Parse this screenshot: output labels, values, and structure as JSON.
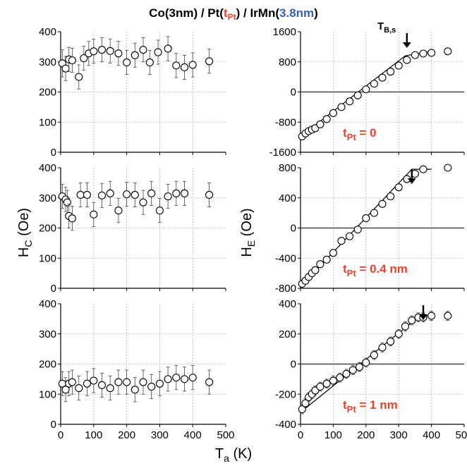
{
  "title": {
    "part1": "Co(3nm) / Pt(",
    "part2": "t",
    "part2_sub": "Pt",
    "part3": ") / IrMn(",
    "part4": "3.8nm",
    "part5": ")"
  },
  "colors": {
    "red": "#e8432e",
    "blue": "#3a62b0"
  },
  "xlabel": {
    "main": "T",
    "sub": "a",
    "rest": " (K)"
  },
  "ylabel_left": {
    "main": "H",
    "sub": "C",
    "rest": " (Oe)"
  },
  "ylabel_right": {
    "main": "H",
    "sub": "E",
    "rest": " (Oe)"
  },
  "tb_label": {
    "main": "T",
    "sub": "B,s"
  },
  "chart_data": [
    {
      "id": "hc-0",
      "type": "scatter",
      "ylim": [
        0,
        400
      ],
      "yticks": [
        0,
        100,
        200,
        300,
        400
      ],
      "xticks": [
        0,
        100,
        200,
        300,
        400,
        500
      ],
      "xlim": [
        0,
        500
      ],
      "x": [
        5,
        15,
        25,
        35,
        55,
        70,
        85,
        100,
        125,
        150,
        175,
        200,
        225,
        250,
        270,
        295,
        325,
        350,
        375,
        400,
        450
      ],
      "y": [
        295,
        278,
        308,
        305,
        250,
        312,
        328,
        335,
        340,
        336,
        328,
        298,
        322,
        340,
        298,
        332,
        344,
        288,
        282,
        290,
        302
      ],
      "err": [
        45,
        40,
        40,
        40,
        40,
        40,
        40,
        40,
        40,
        40,
        40,
        40,
        40,
        40,
        40,
        40,
        40,
        40,
        40,
        40,
        40
      ]
    },
    {
      "id": "hc-1",
      "type": "scatter",
      "ylim": [
        0,
        400
      ],
      "yticks": [
        0,
        100,
        200,
        300,
        400
      ],
      "xticks": [
        0,
        100,
        200,
        300,
        400,
        500
      ],
      "xlim": [
        0,
        500
      ],
      "x": [
        5,
        15,
        20,
        25,
        35,
        60,
        80,
        100,
        125,
        150,
        175,
        200,
        225,
        250,
        275,
        300,
        325,
        350,
        375,
        450
      ],
      "y": [
        305,
        295,
        285,
        240,
        232,
        310,
        310,
        245,
        308,
        315,
        258,
        312,
        310,
        285,
        315,
        258,
        305,
        315,
        315,
        310
      ],
      "err": [
        40,
        40,
        40,
        40,
        40,
        40,
        40,
        40,
        40,
        40,
        40,
        40,
        40,
        40,
        40,
        40,
        40,
        40,
        40,
        40
      ]
    },
    {
      "id": "hc-2",
      "type": "scatter",
      "ylim": [
        0,
        400
      ],
      "yticks": [
        0,
        100,
        200,
        300,
        400
      ],
      "xticks": [
        0,
        100,
        200,
        300,
        400,
        500
      ],
      "xlim": [
        0,
        500
      ],
      "x": [
        5,
        15,
        25,
        35,
        55,
        80,
        100,
        125,
        150,
        175,
        200,
        225,
        250,
        275,
        300,
        325,
        350,
        375,
        400,
        450
      ],
      "y": [
        135,
        115,
        135,
        140,
        120,
        135,
        145,
        130,
        120,
        140,
        140,
        115,
        140,
        125,
        135,
        150,
        155,
        150,
        155,
        140
      ],
      "err": [
        40,
        40,
        40,
        40,
        40,
        40,
        40,
        40,
        40,
        40,
        40,
        40,
        40,
        40,
        40,
        40,
        40,
        40,
        40,
        40
      ]
    },
    {
      "id": "he-0",
      "type": "scatter",
      "ylim": [
        -1600,
        1600
      ],
      "yticks": [
        -1600,
        -800,
        0,
        800,
        1600
      ],
      "xticks": [
        0,
        100,
        200,
        300,
        400,
        500
      ],
      "xlim": [
        0,
        500
      ],
      "x": [
        5,
        15,
        25,
        35,
        45,
        60,
        80,
        100,
        125,
        150,
        175,
        200,
        225,
        250,
        275,
        300,
        325,
        350,
        375,
        400,
        450
      ],
      "y": [
        -1180,
        -1100,
        -1040,
        -1000,
        -960,
        -860,
        -720,
        -560,
        -400,
        -250,
        -90,
        70,
        220,
        380,
        540,
        700,
        850,
        980,
        1020,
        1040,
        1080
      ],
      "err": [
        60,
        60,
        60,
        60,
        60,
        60,
        60,
        60,
        60,
        60,
        60,
        60,
        60,
        60,
        60,
        60,
        60,
        60,
        60,
        60,
        60
      ],
      "fit": [
        [
          0,
          -1180
        ],
        [
          320,
          960
        ],
        [
          400,
          1080
        ]
      ],
      "arrow_x": 325,
      "annotation": {
        "main": "t",
        "sub": "Pt",
        "rest": " = 0"
      }
    },
    {
      "id": "he-1",
      "type": "scatter",
      "ylim": [
        -800,
        800
      ],
      "yticks": [
        -800,
        -400,
        0,
        400,
        800
      ],
      "xticks": [
        0,
        100,
        200,
        300,
        400,
        500
      ],
      "xlim": [
        0,
        500
      ],
      "x": [
        5,
        15,
        25,
        35,
        45,
        60,
        80,
        100,
        125,
        150,
        175,
        200,
        225,
        250,
        275,
        300,
        325,
        350,
        375,
        450
      ],
      "y": [
        -740,
        -700,
        -650,
        -600,
        -560,
        -480,
        -420,
        -330,
        -170,
        -110,
        -20,
        130,
        200,
        320,
        420,
        540,
        650,
        720,
        780,
        800
      ],
      "err": [
        40,
        40,
        40,
        40,
        40,
        40,
        40,
        40,
        40,
        40,
        40,
        40,
        40,
        40,
        40,
        40,
        40,
        40,
        40,
        40
      ],
      "fit": [
        [
          0,
          -780
        ],
        [
          340,
          780
        ],
        [
          400,
          780
        ]
      ],
      "arrow_x": 340,
      "annotation": {
        "main": "t",
        "sub": "Pt",
        "rest": " = 0.4 nm"
      }
    },
    {
      "id": "he-2",
      "type": "scatter",
      "ylim": [
        -400,
        400
      ],
      "yticks": [
        -400,
        -200,
        0,
        200,
        400
      ],
      "xticks": [
        0,
        100,
        200,
        300,
        400,
        500
      ],
      "xlim": [
        0,
        500
      ],
      "x": [
        5,
        15,
        25,
        35,
        45,
        60,
        80,
        100,
        120,
        140,
        160,
        180,
        200,
        225,
        250,
        275,
        300,
        320,
        340,
        360,
        375,
        400,
        450
      ],
      "y": [
        -300,
        -260,
        -220,
        -200,
        -175,
        -150,
        -130,
        -110,
        -90,
        -65,
        -40,
        -20,
        10,
        60,
        110,
        150,
        200,
        250,
        290,
        310,
        310,
        320,
        320
      ],
      "err": [
        30,
        30,
        30,
        30,
        30,
        30,
        30,
        30,
        30,
        30,
        30,
        30,
        30,
        30,
        30,
        30,
        30,
        30,
        30,
        30,
        30,
        30,
        30
      ],
      "fit": [
        [
          0,
          -320
        ],
        [
          365,
          320
        ],
        [
          400,
          320
        ]
      ],
      "arrow_x": 375,
      "annotation": {
        "main": "t",
        "sub": "Pt",
        "rest": " = 1 nm"
      }
    }
  ]
}
